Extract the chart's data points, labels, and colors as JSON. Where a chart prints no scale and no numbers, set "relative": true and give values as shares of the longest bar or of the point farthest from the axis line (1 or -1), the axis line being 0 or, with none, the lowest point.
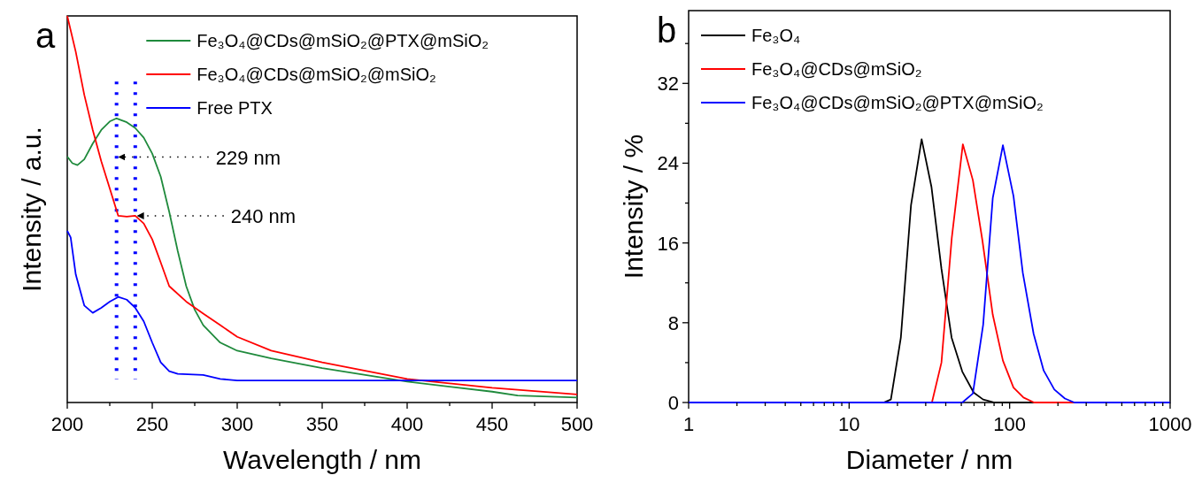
{
  "chart_data": [
    {
      "type": "line",
      "title": "a",
      "xlabel": "Wavelength / nm",
      "ylabel": "Intensity / a.u.",
      "relative": true,
      "xlim": [
        200,
        500
      ],
      "xticks": [
        200,
        {
          "value": 225,
          "label": null
        },
        250,
        {
          "value": 275,
          "label": null
        },
        300,
        {
          "value": 325,
          "label": null
        },
        350,
        {
          "value": 375,
          "label": null
        },
        400,
        {
          "value": 425,
          "label": null
        },
        450,
        {
          "value": 475,
          "label": null
        },
        500
      ],
      "legend": "top right",
      "series": [
        {
          "name": "Fe₃O₄@CDs@mSiO₂@PTX@mSiO₂",
          "color": "#1f8a3c",
          "x": [
            200,
            203,
            206,
            210,
            215,
            220,
            225,
            229,
            235,
            240,
            245,
            250,
            255,
            260,
            265,
            270,
            275,
            280,
            290,
            300,
            320,
            350,
            400,
            450,
            465,
            500
          ],
          "values": [
            0.636,
            0.619,
            0.614,
            0.629,
            0.67,
            0.705,
            0.727,
            0.735,
            0.725,
            0.71,
            0.685,
            0.644,
            0.584,
            0.493,
            0.392,
            0.301,
            0.24,
            0.2,
            0.155,
            0.134,
            0.114,
            0.089,
            0.054,
            0.028,
            0.018,
            0.013
          ]
        },
        {
          "name": "Fe₃O₄@CDs@mSiO₂@mSiO₂",
          "color": "#ff0000",
          "x": [
            200,
            205,
            210,
            215,
            220,
            225,
            230,
            235,
            240,
            245,
            250,
            255,
            260,
            270,
            280,
            290,
            300,
            320,
            350,
            400,
            450,
            500
          ],
          "values": [
            1,
            0.907,
            0.796,
            0.705,
            0.624,
            0.554,
            0.483,
            0.481,
            0.483,
            0.463,
            0.422,
            0.362,
            0.301,
            0.261,
            0.23,
            0.2,
            0.17,
            0.134,
            0.104,
            0.061,
            0.038,
            0.021
          ]
        },
        {
          "name": "Free PTX",
          "color": "#0000ff",
          "x": [
            200,
            202,
            205,
            210,
            215,
            220,
            225,
            230,
            235,
            240,
            245,
            250,
            255,
            260,
            265,
            280,
            290,
            300,
            500
          ],
          "values": [
            0.444,
            0.427,
            0.331,
            0.251,
            0.232,
            0.245,
            0.261,
            0.273,
            0.266,
            0.245,
            0.21,
            0.155,
            0.104,
            0.081,
            0.074,
            0.071,
            0.061,
            0.057,
            0.057
          ]
        }
      ],
      "ref_lines": [
        {
          "axis": "x",
          "value": 229,
          "label": "229 nm",
          "color": "#0000ff",
          "line_style": "dotted"
        },
        {
          "axis": "x",
          "value": 240,
          "label": "240 nm",
          "color": "#0000ff",
          "line_style": "dotted"
        }
      ]
    },
    {
      "type": "line",
      "title": "b",
      "xlabel": "Diameter / nm",
      "ylabel": "Intensity / %",
      "log": "x",
      "xlim": [
        1,
        1000
      ],
      "ylim": [
        0,
        39.3
      ],
      "xticks": [
        1,
        {
          "value": 2,
          "label": null
        },
        {
          "value": 3,
          "label": null
        },
        {
          "value": 4,
          "label": null
        },
        {
          "value": 5,
          "label": null
        },
        {
          "value": 6,
          "label": null
        },
        {
          "value": 7,
          "label": null
        },
        {
          "value": 8,
          "label": null
        },
        {
          "value": 9,
          "label": null
        },
        10,
        {
          "value": 20,
          "label": null
        },
        {
          "value": 30,
          "label": null
        },
        {
          "value": 40,
          "label": null
        },
        {
          "value": 50,
          "label": null
        },
        {
          "value": 60,
          "label": null
        },
        {
          "value": 70,
          "label": null
        },
        {
          "value": 80,
          "label": null
        },
        {
          "value": 90,
          "label": null
        },
        100,
        {
          "value": 200,
          "label": null
        },
        {
          "value": 300,
          "label": null
        },
        {
          "value": 400,
          "label": null
        },
        {
          "value": 500,
          "label": null
        },
        {
          "value": 600,
          "label": null
        },
        {
          "value": 700,
          "label": null
        },
        {
          "value": 800,
          "label": null
        },
        {
          "value": 900,
          "label": null
        },
        1000
      ],
      "yticks": [
        0,
        {
          "value": 4,
          "label": null
        },
        8,
        {
          "value": 12,
          "label": null
        },
        16,
        {
          "value": 20,
          "label": null
        },
        24,
        {
          "value": 28,
          "label": null
        },
        32,
        {
          "value": 36,
          "label": null
        }
      ],
      "legend": "top left",
      "series": [
        {
          "name": "Fe₃O₄",
          "color": "#000000",
          "x": [
            1,
            16.4,
            18.2,
            21,
            24.3,
            28.3,
            32.6,
            37.6,
            43.5,
            50.7,
            59.7,
            68.4,
            80.5,
            1000
          ],
          "values": [
            0,
            0,
            0.3,
            6.5,
            19.8,
            26.4,
            21.6,
            13.4,
            6.5,
            3.1,
            1,
            0.3,
            0,
            0
          ]
        },
        {
          "name": "Fe₃O₄@CDs@mSiO₂",
          "color": "#ff0000",
          "x": [
            1,
            32.8,
            37.6,
            43.6,
            51.1,
            59,
            67.6,
            78.5,
            90.8,
            105.7,
            122,
            142,
            1000
          ],
          "values": [
            0,
            0,
            4,
            16.5,
            25.9,
            22.3,
            16.3,
            8.8,
            4.2,
            1.5,
            0.5,
            0,
            0
          ]
        },
        {
          "name": "Fe₃O₄@CDs@mSiO₂@PTX@mSiO₂",
          "color": "#0000ff",
          "x": [
            1,
            50.7,
            59,
            68.4,
            78.5,
            90.8,
            105.7,
            120.8,
            141,
            163,
            190,
            221,
            253,
            1000
          ],
          "values": [
            0,
            0,
            0.9,
            7.8,
            20.5,
            25.8,
            20.7,
            13,
            6.9,
            3.2,
            1.3,
            0.4,
            0,
            0
          ]
        }
      ]
    }
  ]
}
